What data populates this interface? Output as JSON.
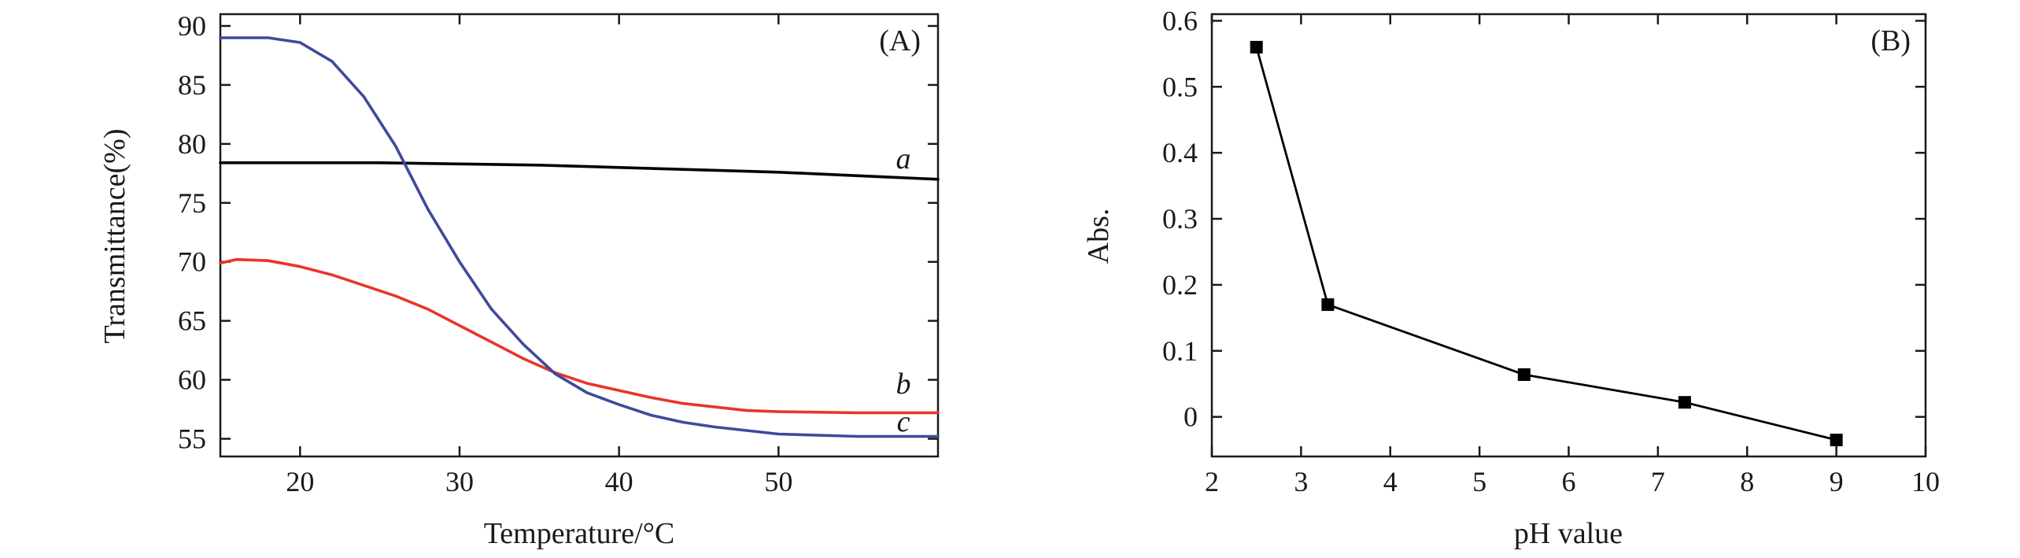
{
  "chart_data": [
    {
      "type": "line",
      "panel_label": "(A)",
      "xlabel": "Temperature/°C",
      "ylabel": "Transmittance(%)",
      "xlim": [
        15,
        60
      ],
      "ylim": [
        53.5,
        91
      ],
      "xticks": [
        20,
        30,
        40,
        50
      ],
      "yticks": [
        55,
        60,
        65,
        70,
        75,
        80,
        85,
        90
      ],
      "grid": false,
      "series": [
        {
          "name": "a",
          "color": "#000000",
          "x": [
            15,
            20,
            25,
            30,
            35,
            40,
            45,
            50,
            55,
            60
          ],
          "y": [
            78.4,
            78.4,
            78.4,
            78.3,
            78.2,
            78.0,
            77.8,
            77.6,
            77.3,
            77.0
          ]
        },
        {
          "name": "b",
          "color": "#e8352b",
          "x": [
            15,
            16,
            18,
            20,
            22,
            24,
            26,
            28,
            30,
            32,
            34,
            36,
            38,
            40,
            42,
            44,
            46,
            48,
            50,
            55,
            60
          ],
          "y": [
            69.9,
            70.2,
            70.1,
            69.6,
            68.9,
            68.0,
            67.1,
            66.0,
            64.6,
            63.2,
            61.8,
            60.6,
            59.7,
            59.1,
            58.5,
            58.0,
            57.7,
            57.4,
            57.3,
            57.2,
            57.2
          ]
        },
        {
          "name": "c",
          "color": "#3f4a9c",
          "x": [
            15,
            16,
            18,
            20,
            22,
            24,
            26,
            28,
            30,
            32,
            34,
            36,
            38,
            40,
            42,
            44,
            46,
            48,
            50,
            55,
            60
          ],
          "y": [
            89.0,
            89.0,
            89.0,
            88.6,
            87.0,
            84.0,
            79.8,
            74.5,
            70.0,
            66.0,
            63.0,
            60.5,
            58.9,
            57.9,
            57.0,
            56.4,
            56.0,
            55.7,
            55.4,
            55.2,
            55.2
          ]
        }
      ]
    },
    {
      "type": "line",
      "markers": "square",
      "panel_label": "(B)",
      "xlabel": "pH value",
      "ylabel": "Abs.",
      "xlim": [
        2,
        10
      ],
      "ylim": [
        -0.06,
        0.61
      ],
      "xticks": [
        2,
        3,
        4,
        5,
        6,
        7,
        8,
        9,
        10
      ],
      "yticks": [
        "0",
        "0.1",
        "0.2",
        "0.3",
        "0.4",
        "0.5",
        "0.6"
      ],
      "grid": false,
      "series": [
        {
          "color": "#000000",
          "x": [
            2.5,
            3.3,
            5.5,
            7.3,
            9.0
          ],
          "y": [
            0.56,
            0.17,
            0.064,
            0.022,
            -0.035
          ]
        }
      ]
    }
  ]
}
